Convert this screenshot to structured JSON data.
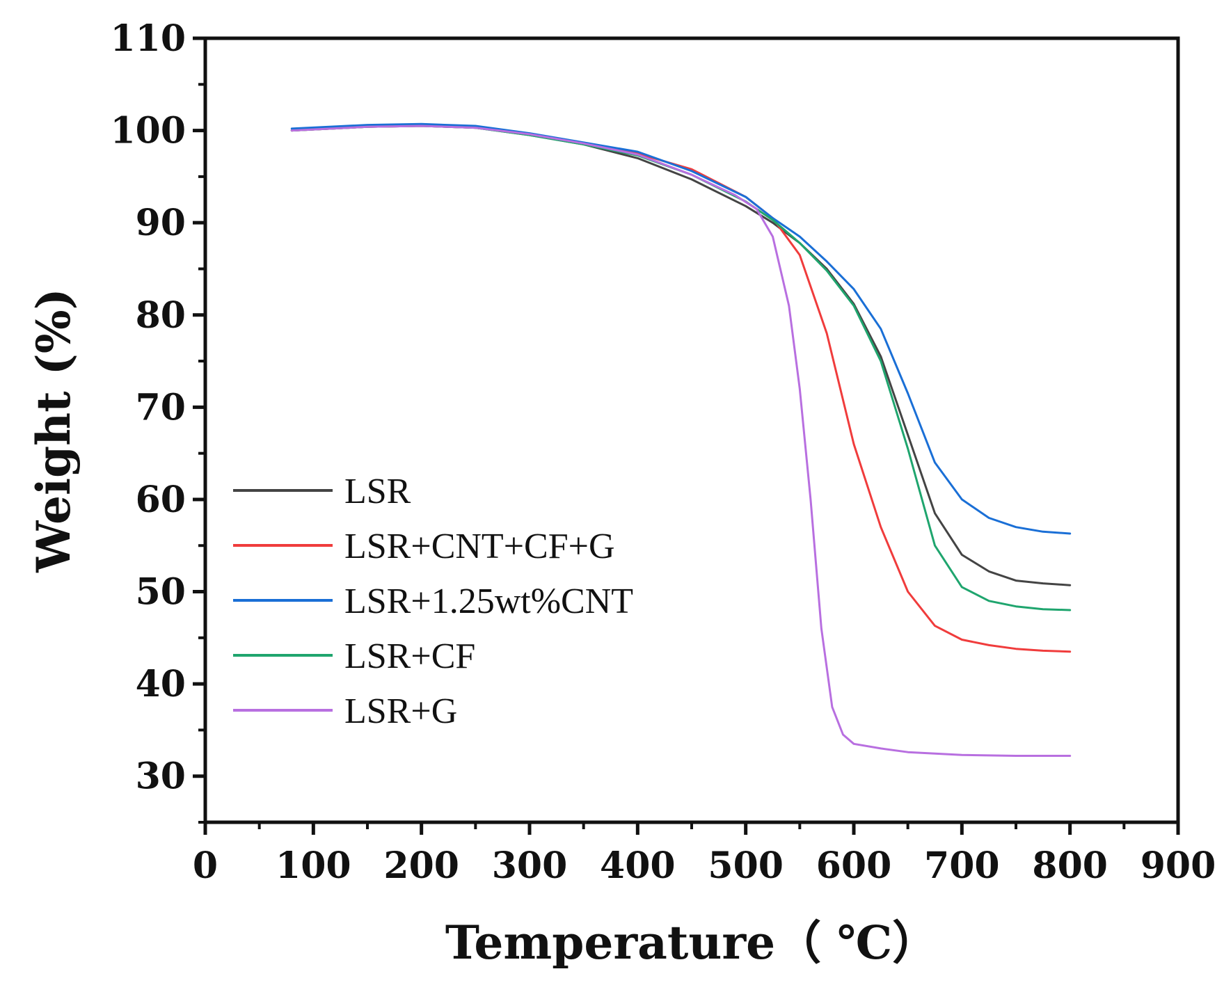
{
  "chart_data": {
    "type": "line",
    "title": "",
    "xlabel": "Temperature（ ℃）",
    "ylabel": "Weight (%)",
    "xlim": [
      0,
      900
    ],
    "ylim": [
      25,
      110
    ],
    "xticks": [
      0,
      100,
      200,
      300,
      400,
      500,
      600,
      700,
      800,
      900
    ],
    "yticks": [
      30,
      40,
      50,
      60,
      70,
      80,
      90,
      100,
      110
    ],
    "x_minor_step": 50,
    "y_minor_step": 5,
    "grid": false,
    "legend_position": "center-left",
    "series": [
      {
        "name": "LSR",
        "color": "#444444",
        "points": [
          [
            80,
            100.0
          ],
          [
            150,
            100.4
          ],
          [
            200,
            100.5
          ],
          [
            250,
            100.3
          ],
          [
            300,
            99.5
          ],
          [
            350,
            98.5
          ],
          [
            400,
            97.0
          ],
          [
            450,
            94.7
          ],
          [
            500,
            91.8
          ],
          [
            525,
            90.0
          ],
          [
            550,
            87.8
          ],
          [
            575,
            85.0
          ],
          [
            600,
            81.2
          ],
          [
            625,
            75.5
          ],
          [
            650,
            67.0
          ],
          [
            675,
            58.5
          ],
          [
            700,
            54.0
          ],
          [
            725,
            52.2
          ],
          [
            750,
            51.2
          ],
          [
            775,
            50.9
          ],
          [
            800,
            50.7
          ]
        ]
      },
      {
        "name": "LSR+CNT+CF+G",
        "color": "#f03c3c",
        "points": [
          [
            80,
            100.0
          ],
          [
            150,
            100.4
          ],
          [
            200,
            100.5
          ],
          [
            250,
            100.3
          ],
          [
            300,
            99.6
          ],
          [
            350,
            98.6
          ],
          [
            400,
            97.5
          ],
          [
            450,
            95.8
          ],
          [
            500,
            92.8
          ],
          [
            525,
            90.5
          ],
          [
            550,
            86.5
          ],
          [
            575,
            78.0
          ],
          [
            600,
            66.0
          ],
          [
            625,
            57.0
          ],
          [
            650,
            50.0
          ],
          [
            675,
            46.3
          ],
          [
            700,
            44.8
          ],
          [
            725,
            44.2
          ],
          [
            750,
            43.8
          ],
          [
            775,
            43.6
          ],
          [
            800,
            43.5
          ]
        ]
      },
      {
        "name": "LSR+1.25wt%CNT",
        "color": "#1a6fd6",
        "points": [
          [
            80,
            100.2
          ],
          [
            150,
            100.6
          ],
          [
            200,
            100.7
          ],
          [
            250,
            100.5
          ],
          [
            300,
            99.7
          ],
          [
            350,
            98.7
          ],
          [
            400,
            97.7
          ],
          [
            450,
            95.6
          ],
          [
            500,
            92.8
          ],
          [
            525,
            90.5
          ],
          [
            550,
            88.5
          ],
          [
            575,
            85.8
          ],
          [
            600,
            82.8
          ],
          [
            625,
            78.5
          ],
          [
            650,
            71.5
          ],
          [
            675,
            64.0
          ],
          [
            700,
            60.0
          ],
          [
            725,
            58.0
          ],
          [
            750,
            57.0
          ],
          [
            775,
            56.5
          ],
          [
            800,
            56.3
          ]
        ]
      },
      {
        "name": "LSR+CF",
        "color": "#1fa56e",
        "points": [
          [
            80,
            100.0
          ],
          [
            150,
            100.4
          ],
          [
            200,
            100.5
          ],
          [
            250,
            100.3
          ],
          [
            300,
            99.5
          ],
          [
            350,
            98.5
          ],
          [
            400,
            97.3
          ],
          [
            450,
            95.2
          ],
          [
            500,
            92.3
          ],
          [
            525,
            90.3
          ],
          [
            550,
            87.8
          ],
          [
            575,
            84.8
          ],
          [
            600,
            81.0
          ],
          [
            625,
            75.0
          ],
          [
            650,
            65.5
          ],
          [
            675,
            55.0
          ],
          [
            700,
            50.5
          ],
          [
            725,
            49.0
          ],
          [
            750,
            48.4
          ],
          [
            775,
            48.1
          ],
          [
            800,
            48.0
          ]
        ]
      },
      {
        "name": "LSR+G",
        "color": "#b86fe0",
        "points": [
          [
            80,
            100.0
          ],
          [
            150,
            100.4
          ],
          [
            200,
            100.5
          ],
          [
            250,
            100.3
          ],
          [
            300,
            99.6
          ],
          [
            350,
            98.6
          ],
          [
            400,
            97.4
          ],
          [
            450,
            95.2
          ],
          [
            490,
            93.0
          ],
          [
            510,
            91.5
          ],
          [
            525,
            88.5
          ],
          [
            540,
            81.0
          ],
          [
            550,
            72.0
          ],
          [
            560,
            60.0
          ],
          [
            570,
            46.0
          ],
          [
            580,
            37.5
          ],
          [
            590,
            34.5
          ],
          [
            600,
            33.5
          ],
          [
            625,
            33.0
          ],
          [
            650,
            32.6
          ],
          [
            700,
            32.3
          ],
          [
            750,
            32.2
          ],
          [
            800,
            32.2
          ]
        ]
      }
    ]
  }
}
